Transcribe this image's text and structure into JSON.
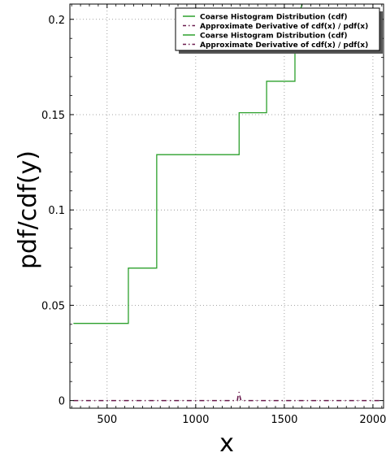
{
  "chart_data": {
    "type": "line",
    "title": "",
    "xlabel": "x",
    "ylabel": "pdf/cdf(y)",
    "xlim": [
      290,
      2060
    ],
    "ylim": [
      -0.004,
      0.208
    ],
    "xticks": [
      500,
      1000,
      1500,
      2000
    ],
    "xtick_labels": [
      "500",
      "1000",
      "1500",
      "2000"
    ],
    "yticks": [
      0,
      0.05,
      0.1,
      0.15,
      0.2
    ],
    "ytick_labels": [
      "0",
      "0.05",
      "0.1",
      "0.15",
      "0.2"
    ],
    "grid": true,
    "legend_position": "top-right",
    "series": [
      {
        "name": "Coarse Histogram Distribution (cdf)",
        "style": "step",
        "color": "#2ca02c",
        "x": [
          310,
          620,
          620,
          780,
          780,
          1245,
          1245,
          1400,
          1400,
          1560,
          1560,
          1600
        ],
        "y": [
          0.0405,
          0.0405,
          0.0695,
          0.0695,
          0.129,
          0.129,
          0.151,
          0.151,
          0.1675,
          0.1675,
          0.194,
          0.208
        ]
      },
      {
        "name": "Approximate Derivative of cdf(x) / pdf(x)",
        "style": "dashdot",
        "color": "#6a1b4d",
        "x": [
          310,
          1000,
          1235,
          1240,
          1245,
          1250,
          1255,
          1300,
          1500,
          2000,
          2050
        ],
        "y": [
          0,
          0,
          0,
          0.003,
          0.0045,
          0.002,
          0,
          0,
          0,
          0,
          0
        ]
      },
      {
        "name": "Coarse Histogram Distribution (cdf)",
        "style": "step",
        "color": "#2ca02c",
        "x": [],
        "y": []
      },
      {
        "name": "Approximate Derivative of cdf(x) / pdf(x)",
        "style": "dashdot",
        "color": "#6a1b4d",
        "x": [],
        "y": []
      }
    ]
  }
}
